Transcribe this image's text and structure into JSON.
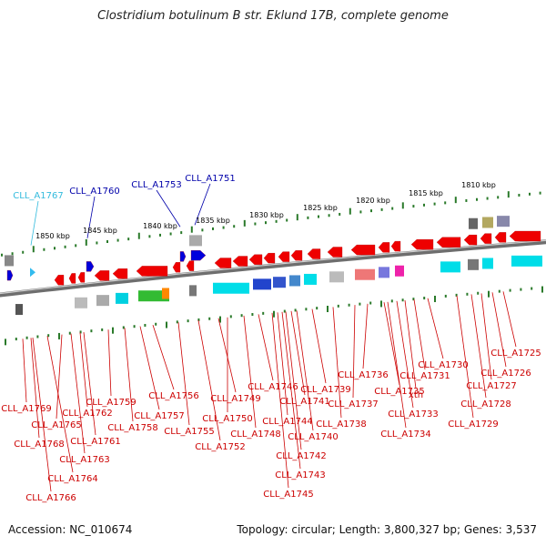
{
  "title": "Clostridium botulinum B str. Eklund 17B, complete genome",
  "footer": {
    "accession": "Accession: NC_010674",
    "summary": "Topology: circular; Length: 3,800,327 bp; Genes: 3,537"
  },
  "colors": {
    "backbone": "#8a8a8a",
    "forward_label": "#0000aa",
    "forward_label_light": "#33bbdd",
    "reverse_label": "#cc0000",
    "tick": "#2a7a2a",
    "gene_red": "#ee0000"
  },
  "ruler_labels": [
    "1850 kbp",
    "1845 kbp",
    "1840 kbp",
    "1835 kbp",
    "1830 kbp",
    "1825 kbp",
    "1820 kbp",
    "1815 kbp",
    "1810 kbp"
  ],
  "forward_genes": [
    "CLL_A1767",
    "CLL_A1760",
    "CLL_A1753",
    "CLL_A1751"
  ],
  "reverse_genes": [
    "CLL_A1725",
    "CLL_A1726",
    "CLL_A1727",
    "CLL_A1728",
    "CLL_A1729",
    "CLL_A1730",
    "CLL_A1731",
    "xth",
    "CLL_A1733",
    "CLL_A1734",
    "CLL_A1735",
    "CLL_A1736",
    "CLL_A1737",
    "CLL_A1738",
    "CLL_A1739",
    "CLL_A1740",
    "CLL_A1741",
    "CLL_A1742",
    "CLL_A1743",
    "CLL_A1744",
    "CLL_A1745",
    "CLL_A1746",
    "CLL_A1748",
    "CLL_A1749",
    "CLL_A1750",
    "CLL_A1752",
    "CLL_A1755",
    "CLL_A1756",
    "CLL_A1757",
    "CLL_A1758",
    "CLL_A1759",
    "CLL_A1761",
    "CLL_A1762",
    "CLL_A1763",
    "CLL_A1764",
    "CLL_A1765",
    "CLL_A1766",
    "CLL_A1768",
    "CLL_A1769"
  ]
}
